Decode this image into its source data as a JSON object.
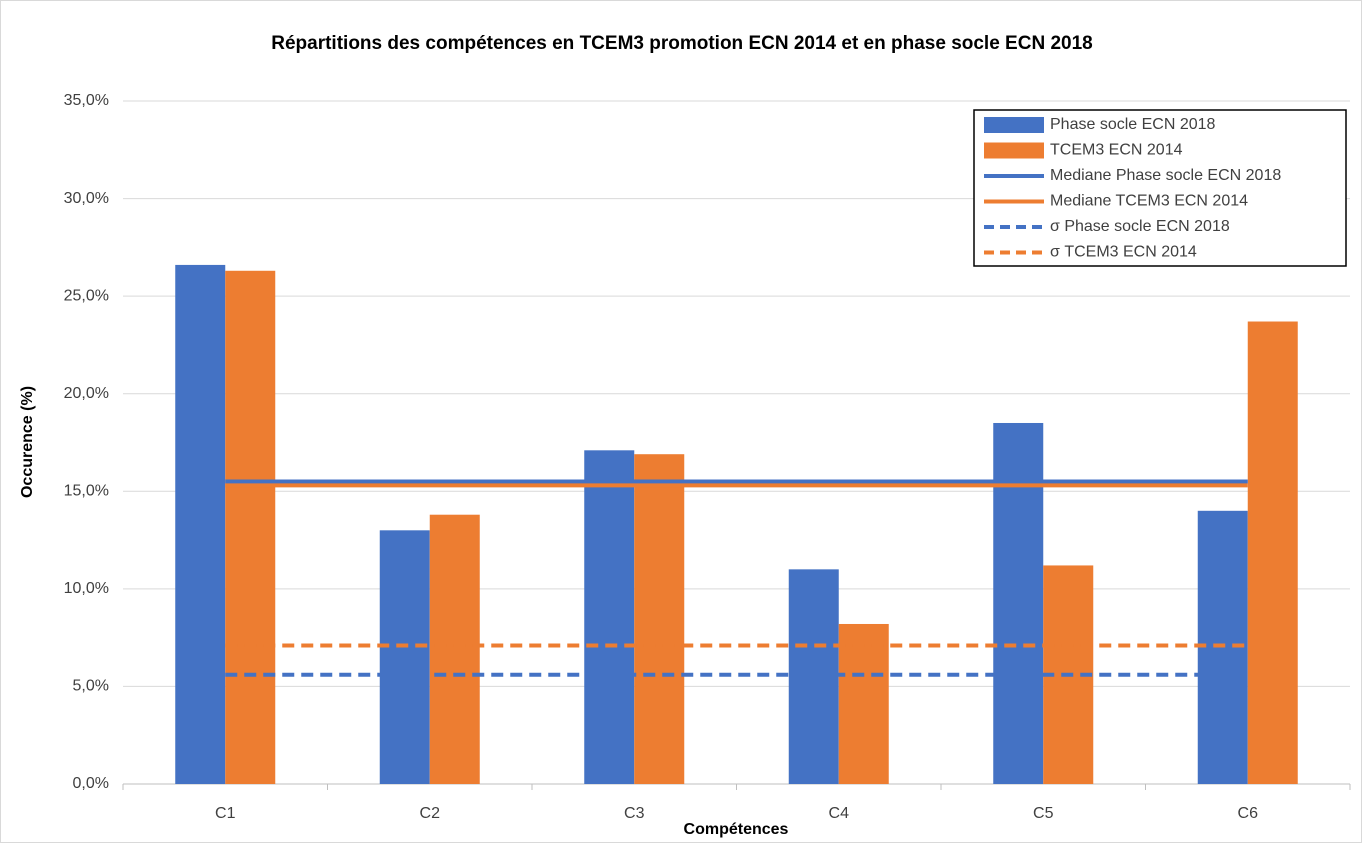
{
  "chart_data": {
    "type": "bar",
    "title": "Répartitions des compétences en TCEM3 promotion ECN 2014 et en phase socle ECN 2018",
    "x_label": "Compétences",
    "y_label": "Occurence (%)",
    "categories": [
      "C1",
      "C2",
      "C3",
      "C4",
      "C5",
      "C6"
    ],
    "ylim": [
      0,
      35
    ],
    "yticks": [
      {
        "value": 0,
        "label": "0,0%"
      },
      {
        "value": 5,
        "label": "5,0%"
      },
      {
        "value": 10,
        "label": "10,0%"
      },
      {
        "value": 15,
        "label": "15,0%"
      },
      {
        "value": 20,
        "label": "20,0%"
      },
      {
        "value": 25,
        "label": "25,0%"
      },
      {
        "value": 30,
        "label": "30,0%"
      },
      {
        "value": 35,
        "label": "35,0%"
      }
    ],
    "grid": true,
    "legend": "top-right",
    "series": [
      {
        "name": "Phase socle ECN 2018",
        "color": "#4472c4",
        "mark": "bar",
        "values": [
          26.6,
          13.0,
          17.1,
          11.0,
          18.5,
          14.0
        ]
      },
      {
        "name": "TCEM3 ECN 2014",
        "color": "#ed7d31",
        "mark": "bar",
        "values": [
          26.3,
          13.8,
          16.9,
          8.2,
          11.2,
          23.7
        ]
      },
      {
        "name": "Mediane Phase socle ECN 2018",
        "color": "#4472c4",
        "mark": "line",
        "dashed": false,
        "values": [
          15.5,
          15.5,
          15.5,
          15.5,
          15.5,
          15.5
        ]
      },
      {
        "name": "Mediane TCEM3 ECN 2014",
        "color": "#ed7d31",
        "mark": "line",
        "dashed": false,
        "values": [
          15.3,
          15.3,
          15.3,
          15.3,
          15.3,
          15.3
        ]
      },
      {
        "name": "σ Phase socle ECN 2018",
        "color": "#4472c4",
        "mark": "line",
        "dashed": true,
        "values": [
          5.6,
          5.6,
          5.6,
          5.6,
          5.6,
          5.6
        ]
      },
      {
        "name": "σ TCEM3 ECN 2014",
        "color": "#ed7d31",
        "mark": "line",
        "dashed": true,
        "values": [
          7.1,
          7.1,
          7.1,
          7.1,
          7.1,
          7.1
        ]
      }
    ]
  }
}
